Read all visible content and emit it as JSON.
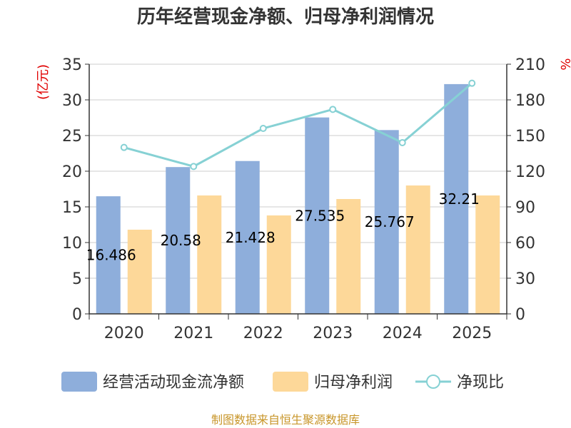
{
  "chart_data": {
    "type": "bar",
    "title": "历年经营现金净额、归母净利润情况",
    "categories": [
      "2020",
      "2021",
      "2022",
      "2023",
      "2024",
      "2025"
    ],
    "series": [
      {
        "name": "经营活动现金流净额",
        "type": "bar",
        "axis": "left",
        "color": "#8eaedb",
        "values": [
          16.486,
          20.58,
          21.428,
          27.535,
          25.767,
          32.21
        ],
        "labels": [
          "16.486",
          "20.58",
          "21.428",
          "27.535",
          "25.767",
          "32.21"
        ]
      },
      {
        "name": "归母净利润",
        "type": "bar",
        "axis": "left",
        "color": "#fdd899",
        "values": [
          11.8,
          16.6,
          13.8,
          16.1,
          18.0,
          16.6
        ]
      },
      {
        "name": "净现比",
        "type": "line",
        "axis": "right",
        "color": "#86d1d4",
        "values": [
          140,
          124,
          156,
          172,
          144,
          194
        ]
      }
    ],
    "y_left": {
      "label": "(亿元)",
      "min": 0,
      "max": 35,
      "ticks": [
        0,
        5,
        10,
        15,
        20,
        25,
        30,
        35
      ]
    },
    "y_right": {
      "label": "%",
      "min": 0,
      "max": 210,
      "ticks": [
        0,
        30,
        60,
        90,
        120,
        150,
        180,
        210
      ]
    },
    "grid": true,
    "legend_position": "bottom"
  },
  "source": "制图数据来自恒生聚源数据库"
}
